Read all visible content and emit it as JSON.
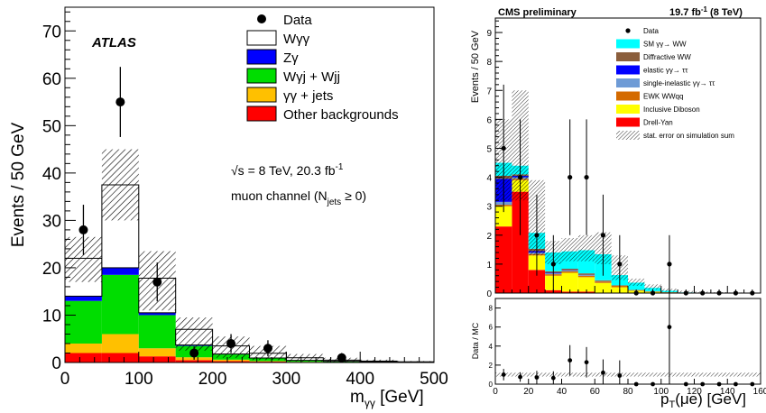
{
  "chart_data": [
    {
      "type": "bar",
      "stacked": true,
      "experiment": "ATLAS",
      "energy_label": "√s = 8 TeV, 20.3 fb",
      "energy_sup": "-1",
      "channel_label": "muon channel (N",
      "channel_sub": "jets",
      "channel_suffix": " ≥ 0)",
      "ylabel": "Events / 50 GeV",
      "xlabel": "m",
      "xlabel_sub": "γγ",
      "xlabel_unit": " [GeV]",
      "xlim": [
        0,
        500
      ],
      "ylim": [
        0,
        75
      ],
      "xticks": [
        0,
        100,
        200,
        300,
        400,
        500
      ],
      "yticks": [
        0,
        10,
        20,
        30,
        40,
        50,
        60,
        70
      ],
      "bin_edges": [
        0,
        50,
        100,
        150,
        200,
        250,
        300,
        350,
        400,
        450,
        500
      ],
      "series": [
        {
          "name": "Other backgrounds",
          "color": "#ff0000",
          "values": [
            2.0,
            2.0,
            1.3,
            0.5,
            0.3,
            0.2,
            0.1,
            0.1,
            0.05,
            0.0
          ]
        },
        {
          "name": "γγ + jets",
          "color": "#ffc000",
          "values": [
            2.0,
            4.0,
            1.7,
            0.6,
            0.3,
            0.1,
            0.05,
            0.0,
            0.0,
            0.0
          ]
        },
        {
          "name": "Wγj + Wjj",
          "color": "#00dd00",
          "values": [
            9.0,
            12.5,
            7.0,
            2.4,
            1.1,
            0.6,
            0.3,
            0.15,
            0.1,
            0.05
          ]
        },
        {
          "name": "Zγ",
          "color": "#0000ff",
          "values": [
            1.0,
            1.5,
            0.5,
            0.2,
            0.1,
            0.05,
            0.0,
            0.0,
            0.0,
            0.0
          ]
        },
        {
          "name": "Wγγ",
          "color": "#ffffff",
          "values": [
            8.0,
            17.5,
            7.3,
            3.3,
            1.7,
            1.0,
            0.55,
            0.25,
            0.15,
            0.1
          ]
        }
      ],
      "uncertainty": {
        "name": "",
        "low": [
          17.0,
          30.0,
          11.0,
          2.5,
          1.0,
          0.5,
          0.2,
          0.1,
          0.05,
          0.0
        ],
        "high": [
          26.5,
          45.0,
          23.5,
          9.5,
          5.5,
          3.5,
          1.8,
          1.0,
          0.6,
          0.3
        ]
      },
      "data": {
        "name": "Data",
        "x": [
          25,
          75,
          125,
          175,
          225,
          275,
          375
        ],
        "y": [
          28,
          55,
          17,
          2,
          4,
          3,
          1
        ],
        "err": [
          5.3,
          7.4,
          4.1,
          1.4,
          2.0,
          1.7,
          1.0
        ]
      },
      "legend_order": [
        "Data",
        "Wγγ",
        "Zγ",
        "Wγj + Wjj",
        "γγ + jets",
        "Other backgrounds"
      ],
      "legend_placement": "top-right"
    },
    {
      "type": "bar",
      "stacked": true,
      "experiment": "CMS preliminary",
      "lumi": "19.7 fb",
      "lumi_sup": "-1",
      "lumi_suffix": " (8 TeV)",
      "ylabel": "Events / 50 GeV",
      "xlabel": "p",
      "xlabel_sub": "T",
      "xlabel_suffix": "(μe) [GeV]",
      "xlim": [
        0,
        160
      ],
      "ylim": [
        0,
        9.5
      ],
      "xticks": [
        0,
        20,
        40,
        60,
        80,
        100,
        120,
        140,
        160
      ],
      "xtick_labels": [
        "0",
        "20",
        "40",
        "60",
        "80",
        "100",
        "120",
        "140",
        "160"
      ],
      "yticks": [
        0,
        1,
        2,
        3,
        4,
        5,
        6,
        7,
        8,
        9
      ],
      "bin_edges": [
        0,
        10,
        20,
        30,
        40,
        50,
        60,
        70,
        80,
        90,
        100,
        110,
        120,
        130,
        140,
        150,
        160
      ],
      "series": [
        {
          "name": "Drell-Yan",
          "color": "#ff0000",
          "values": [
            2.3,
            3.5,
            0.8,
            0.1,
            0.05,
            0.05,
            0.0,
            0.0,
            0,
            0,
            0,
            0,
            0,
            0,
            0,
            0
          ]
        },
        {
          "name": "Inclusive Diboson",
          "color": "#ffff00",
          "values": [
            0.7,
            0.4,
            0.5,
            0.5,
            0.65,
            0.5,
            0.35,
            0.2,
            0.08,
            0.04,
            0.02,
            0,
            0,
            0,
            0,
            0
          ]
        },
        {
          "name": "EWK WWqq",
          "color": "#d46a00",
          "values": [
            0.05,
            0.05,
            0.05,
            0.05,
            0.05,
            0.05,
            0.05,
            0.05,
            0.02,
            0.01,
            0.01,
            0,
            0,
            0,
            0,
            0
          ]
        },
        {
          "name": "single-inelastic  γγ→ ττ",
          "color": "#6e9bd6",
          "values": [
            0.1,
            0.05,
            0.05,
            0.03,
            0.03,
            0.02,
            0.01,
            0,
            0,
            0,
            0,
            0,
            0,
            0,
            0,
            0
          ]
        },
        {
          "name": "elastic  γγ→ ττ",
          "color": "#0000ff",
          "values": [
            0.8,
            0.05,
            0.05,
            0.02,
            0.01,
            0.01,
            0,
            0,
            0,
            0,
            0,
            0,
            0,
            0,
            0,
            0
          ]
        },
        {
          "name": "Diffractive WW",
          "color": "#8b5e3c",
          "values": [
            0.1,
            0.05,
            0.08,
            0.05,
            0.05,
            0.05,
            0.03,
            0.02,
            0.01,
            0.01,
            0,
            0,
            0,
            0,
            0,
            0
          ]
        },
        {
          "name": "SM γγ→ WW",
          "color": "#00ffff",
          "values": [
            0.45,
            0.3,
            0.55,
            0.65,
            0.6,
            0.8,
            0.9,
            0.35,
            0.25,
            0.12,
            0.05,
            0.02,
            0.01,
            0,
            0,
            0
          ]
        }
      ],
      "uncertainty": {
        "name": "stat. error on simulation sum",
        "low": [
          3.2,
          3.2,
          1.3,
          1.0,
          1.1,
          1.1,
          1.0,
          0.45,
          0.25,
          0.12,
          0.05,
          0.02,
          0.01,
          0,
          0,
          0
        ],
        "high": [
          6.0,
          7.0,
          3.9,
          1.8,
          1.9,
          2.0,
          2.1,
          1.3,
          0.5,
          0.3,
          0.15,
          0.08,
          0.05,
          0.03,
          0.02,
          0.01
        ]
      },
      "data": {
        "name": "Data",
        "x": [
          5,
          15,
          25,
          35,
          45,
          55,
          65,
          75,
          85,
          95,
          105,
          115,
          125,
          135,
          145,
          155
        ],
        "y": [
          5,
          4,
          2,
          1,
          4,
          4,
          2,
          1,
          0,
          0,
          1,
          0,
          0,
          0,
          0,
          0
        ],
        "err": [
          2.2,
          2.0,
          1.4,
          1.0,
          2.0,
          2.0,
          1.4,
          1.0,
          0,
          0,
          1.0,
          0,
          0,
          0,
          0,
          0
        ]
      },
      "legend_order": [
        "Data",
        "SM γγ→ WW",
        "Diffractive WW",
        "elastic  γγ→ ττ",
        "single-inelastic  γγ→ ττ",
        "EWK WWqq",
        "Inclusive Diboson",
        "Drell-Yan",
        "stat. error on simulation sum"
      ],
      "legend_placement": "top-right",
      "ratio_panel": {
        "ylabel": "Data / MC",
        "ylim": [
          0,
          9
        ],
        "yticks": [
          0,
          2,
          4,
          6,
          8
        ],
        "x": [
          5,
          15,
          25,
          35,
          45,
          55,
          65,
          75,
          85,
          95,
          105,
          115,
          125,
          135,
          145,
          155
        ],
        "y": [
          1.0,
          0.75,
          0.7,
          0.65,
          2.5,
          2.3,
          1.2,
          0.9,
          0,
          0,
          6.0,
          0,
          0,
          0,
          0,
          0
        ],
        "err": [
          0.6,
          0.5,
          0.7,
          0.7,
          1.6,
          1.6,
          1.4,
          1.6,
          0,
          0,
          6.0,
          0,
          0,
          0,
          0,
          0
        ],
        "band_low": 0.8,
        "band_high": 1.2
      }
    }
  ]
}
